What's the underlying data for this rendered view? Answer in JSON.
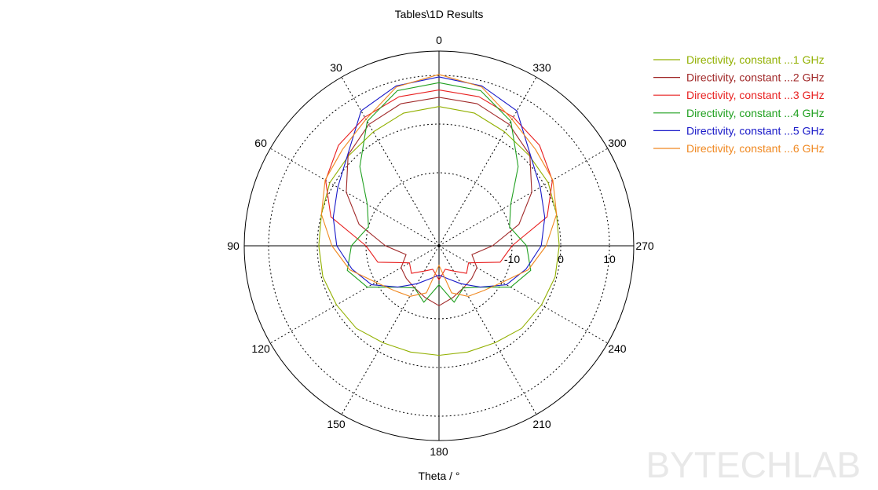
{
  "chart_data": {
    "type": "polar-line",
    "title": "Tables\\1D Results",
    "axis_label": "Theta / °",
    "angle_direction": "counterclockwise",
    "zero_at": "top",
    "angle_ticks": [
      "0",
      "30",
      "60",
      "90",
      "120",
      "150",
      "180",
      "210",
      "240",
      "270",
      "300",
      "330"
    ],
    "radial_ticks": [
      "-10",
      "0",
      "10"
    ],
    "radial_range": [
      -25,
      15
    ],
    "grid": true,
    "legend_position": "top-right",
    "series": [
      {
        "name": "Directivity, constant ...1 GHz",
        "color": "#92b000",
        "points": [
          [
            0,
            3.6
          ],
          [
            15,
            3.2
          ],
          [
            30,
            2.0
          ],
          [
            45,
            1.2
          ],
          [
            60,
            0.9
          ],
          [
            75,
            0.0
          ],
          [
            90,
            -0.3
          ],
          [
            105,
            -0.3
          ],
          [
            120,
            -0.7
          ],
          [
            135,
            -1.0
          ],
          [
            150,
            -2.0
          ],
          [
            165,
            -2.4
          ],
          [
            180,
            -2.5
          ],
          [
            195,
            -2.4
          ],
          [
            210,
            -2.0
          ],
          [
            225,
            -1.0
          ],
          [
            240,
            -0.7
          ],
          [
            255,
            -0.3
          ],
          [
            270,
            -0.3
          ],
          [
            285,
            0.0
          ],
          [
            300,
            0.9
          ],
          [
            315,
            1.2
          ],
          [
            330,
            2.0
          ],
          [
            345,
            3.2
          ],
          [
            360,
            3.6
          ]
        ]
      },
      {
        "name": "Directivity, constant ...2 GHz",
        "color": "#a02828",
        "points": [
          [
            0,
            5.5
          ],
          [
            15,
            5.2
          ],
          [
            30,
            3.8
          ],
          [
            45,
            1.4
          ],
          [
            60,
            -3.0
          ],
          [
            75,
            -8.0
          ],
          [
            90,
            -14.0
          ],
          [
            105,
            -18.0
          ],
          [
            120,
            -16.0
          ],
          [
            135,
            -15.5
          ],
          [
            150,
            -15.0
          ],
          [
            165,
            -14.0
          ],
          [
            180,
            -12.7
          ],
          [
            195,
            -14.0
          ],
          [
            210,
            -15.0
          ],
          [
            225,
            -15.5
          ],
          [
            240,
            -16.0
          ],
          [
            255,
            -18.0
          ],
          [
            270,
            -14.0
          ],
          [
            285,
            -8.0
          ],
          [
            300,
            -3.0
          ],
          [
            315,
            1.4
          ],
          [
            330,
            3.8
          ],
          [
            345,
            5.2
          ],
          [
            360,
            5.5
          ]
        ]
      },
      {
        "name": "Directivity, constant ...3 GHz",
        "color": "#e82020",
        "points": [
          [
            0,
            7.0
          ],
          [
            15,
            6.7
          ],
          [
            30,
            5.5
          ],
          [
            45,
            4.2
          ],
          [
            60,
            1.9
          ],
          [
            75,
            -2.0
          ],
          [
            90,
            -10.0
          ],
          [
            105,
            -12.0
          ],
          [
            120,
            -18.0
          ],
          [
            135,
            -17.0
          ],
          [
            150,
            -19.0
          ],
          [
            165,
            -20.0
          ],
          [
            180,
            -18.0
          ],
          [
            195,
            -20.0
          ],
          [
            210,
            -19.0
          ],
          [
            225,
            -17.0
          ],
          [
            240,
            -18.0
          ],
          [
            255,
            -12.0
          ],
          [
            270,
            -10.0
          ],
          [
            285,
            -2.0
          ],
          [
            300,
            1.9
          ],
          [
            315,
            4.2
          ],
          [
            330,
            5.5
          ],
          [
            345,
            6.7
          ],
          [
            360,
            7.0
          ]
        ]
      },
      {
        "name": "Directivity, constant ...4 GHz",
        "color": "#20a020",
        "points": [
          [
            0,
            8.5
          ],
          [
            15,
            8.0
          ],
          [
            30,
            4.5
          ],
          [
            45,
            -2.0
          ],
          [
            60,
            -8.0
          ],
          [
            75,
            -10.0
          ],
          [
            90,
            -7.0
          ],
          [
            105,
            -5.5
          ],
          [
            120,
            -8.0
          ],
          [
            135,
            -13.0
          ],
          [
            150,
            -15.0
          ],
          [
            165,
            -13.0
          ],
          [
            180,
            -17.0
          ],
          [
            195,
            -13.0
          ],
          [
            210,
            -15.0
          ],
          [
            225,
            -13.0
          ],
          [
            240,
            -8.0
          ],
          [
            255,
            -5.5
          ],
          [
            270,
            -7.0
          ],
          [
            285,
            -10.0
          ],
          [
            300,
            -8.0
          ],
          [
            315,
            -2.0
          ],
          [
            330,
            4.5
          ],
          [
            345,
            8.0
          ],
          [
            360,
            8.5
          ]
        ]
      },
      {
        "name": "Directivity, constant ...5 GHz",
        "color": "#1818c8",
        "points": [
          [
            0,
            9.7
          ],
          [
            15,
            9.0
          ],
          [
            30,
            7.0
          ],
          [
            45,
            1.5
          ],
          [
            60,
            -1.0
          ],
          [
            75,
            -2.5
          ],
          [
            90,
            -4.0
          ],
          [
            105,
            -6.5
          ],
          [
            120,
            -9.0
          ],
          [
            135,
            -13.0
          ],
          [
            150,
            -16.0
          ],
          [
            165,
            -18.0
          ],
          [
            180,
            -19.0
          ],
          [
            195,
            -18.0
          ],
          [
            210,
            -16.0
          ],
          [
            225,
            -13.0
          ],
          [
            240,
            -9.0
          ],
          [
            255,
            -6.5
          ],
          [
            270,
            -4.0
          ],
          [
            285,
            -2.5
          ],
          [
            300,
            -1.0
          ],
          [
            315,
            1.5
          ],
          [
            330,
            7.0
          ],
          [
            345,
            9.0
          ],
          [
            360,
            9.7
          ]
        ]
      },
      {
        "name": "Directivity, constant ...6 GHz",
        "color": "#f08820",
        "points": [
          [
            0,
            10.2
          ],
          [
            15,
            8.8
          ],
          [
            30,
            5.0
          ],
          [
            45,
            3.0
          ],
          [
            60,
            2.0
          ],
          [
            75,
            0.0
          ],
          [
            90,
            -3.0
          ],
          [
            105,
            -6.0
          ],
          [
            120,
            -10.0
          ],
          [
            135,
            -12.0
          ],
          [
            150,
            -13.0
          ],
          [
            165,
            -15.0
          ],
          [
            180,
            -21.0
          ],
          [
            195,
            -15.0
          ],
          [
            210,
            -13.0
          ],
          [
            225,
            -12.0
          ],
          [
            240,
            -10.0
          ],
          [
            255,
            -6.0
          ],
          [
            270,
            -3.0
          ],
          [
            285,
            0.0
          ],
          [
            300,
            2.0
          ],
          [
            315,
            3.0
          ],
          [
            330,
            5.0
          ],
          [
            345,
            8.8
          ],
          [
            360,
            10.2
          ]
        ]
      }
    ]
  },
  "watermark": "BYTECHLAB"
}
